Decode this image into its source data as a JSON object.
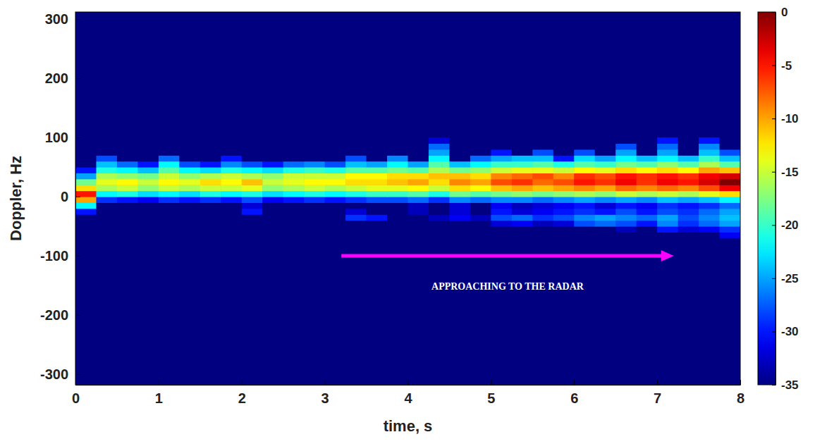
{
  "chart_data": {
    "type": "heatmap",
    "xlabel": "time, s",
    "ylabel": "Doppler, Hz",
    "xlim": [
      0,
      8
    ],
    "xticks": [
      0,
      1,
      2,
      3,
      4,
      5,
      6,
      7,
      8
    ],
    "ylim": [
      -318,
      312
    ],
    "yticks": [
      -300,
      -200,
      -100,
      0,
      100,
      200,
      300
    ],
    "cells": {
      "x_bins": [
        0,
        0.25,
        0.5,
        0.75,
        1,
        1.25,
        1.5,
        1.75,
        2,
        2.25,
        2.5,
        2.75,
        3,
        3.25,
        3.5,
        3.75,
        4,
        4.25,
        4.5,
        4.75,
        5,
        5.25,
        5.5,
        5.75,
        6,
        6.25,
        6.5,
        6.75,
        7,
        7.25,
        7.5,
        7.75,
        8
      ],
      "y_bins": [
        -80,
        -70,
        -60,
        -50,
        -40,
        -30,
        -20,
        -10,
        0,
        10,
        20,
        30,
        40,
        50,
        60,
        70,
        80,
        90,
        100
      ],
      "z": [
        [
          -35,
          -35,
          -35,
          -35,
          -35,
          -35,
          -35,
          -35,
          -35,
          -35,
          -35,
          -35,
          -35,
          -35,
          -35,
          -35,
          -35,
          -35,
          -35,
          -35,
          -35,
          -35,
          -35,
          -35,
          -35,
          -35,
          -35,
          -35,
          -35,
          -35,
          -35,
          -35
        ],
        [
          -35,
          -35,
          -35,
          -35,
          -35,
          -35,
          -35,
          -35,
          -35,
          -35,
          -35,
          -35,
          -35,
          -35,
          -35,
          -35,
          -35,
          -35,
          -35,
          -35,
          -35,
          -35,
          -35,
          -35,
          -35,
          -35,
          -35,
          -35,
          -35,
          -35,
          -35,
          -31
        ],
        [
          -35,
          -35,
          -35,
          -35,
          -35,
          -35,
          -35,
          -35,
          -35,
          -35,
          -35,
          -35,
          -35,
          -35,
          -35,
          -35,
          -35,
          -35,
          -35,
          -35,
          -35,
          -35,
          -35,
          -35,
          -35,
          -35,
          -33,
          -35,
          -30,
          -32,
          -31,
          -29
        ],
        [
          -35,
          -35,
          -35,
          -35,
          -35,
          -35,
          -35,
          -35,
          -35,
          -35,
          -35,
          -35,
          -35,
          -35,
          -35,
          -35,
          -35,
          -35,
          -35,
          -35,
          -32,
          -31,
          -33,
          -32,
          -28,
          -27,
          -28,
          -30,
          -26,
          -29,
          -27,
          -25
        ],
        [
          -35,
          -35,
          -35,
          -35,
          -35,
          -35,
          -35,
          -35,
          -35,
          -35,
          -35,
          -35,
          -35,
          -29,
          -30,
          -35,
          -35,
          -33,
          -31,
          -33,
          -28,
          -27,
          -29,
          -28,
          -26,
          -25,
          -26,
          -27,
          -25,
          -28,
          -26,
          -24
        ],
        [
          -30,
          -35,
          -35,
          -35,
          -35,
          -35,
          -35,
          -35,
          -30,
          -35,
          -35,
          -35,
          -35,
          -32,
          -35,
          -35,
          -33,
          -35,
          -32,
          -35,
          -30,
          -32,
          -31,
          -30,
          -29,
          -30,
          -28,
          -30,
          -28,
          -29,
          -27,
          -25
        ],
        [
          -22,
          -35,
          -35,
          -35,
          -35,
          -35,
          -35,
          -35,
          -32,
          -35,
          -35,
          -35,
          -35,
          -35,
          -35,
          -35,
          -33,
          -35,
          -32,
          -35,
          -31,
          -33,
          -32,
          -31,
          -30,
          -32,
          -30,
          -31,
          -29,
          -30,
          -29,
          -27
        ],
        [
          -10,
          -29,
          -30,
          -31,
          -29,
          -30,
          -29,
          -30,
          -28,
          -31,
          -30,
          -29,
          -30,
          -29,
          -28,
          -28,
          -27,
          -29,
          -26,
          -27,
          -26,
          -26,
          -27,
          -26,
          -25,
          -26,
          -25,
          -26,
          -24,
          -25,
          -24,
          -22
        ],
        [
          -5,
          -22,
          -21,
          -23,
          -22,
          -23,
          -21,
          -22,
          -21,
          -23,
          -22,
          -21,
          -22,
          -21,
          -20,
          -20,
          -19,
          -21,
          -18,
          -19,
          -18,
          -17,
          -18,
          -17,
          -16,
          -17,
          -15,
          -16,
          -15,
          -16,
          -14,
          -12
        ],
        [
          -12,
          -16,
          -15,
          -17,
          -15,
          -16,
          -15,
          -15,
          -14,
          -17,
          -16,
          -15,
          -16,
          -15,
          -14,
          -14,
          -13,
          -15,
          -12,
          -13,
          -11,
          -10,
          -11,
          -10,
          -9,
          -10,
          -8,
          -9,
          -8,
          -9,
          -7,
          -4
        ],
        [
          -18,
          -14,
          -13,
          -15,
          -13,
          -14,
          -12,
          -13,
          -11,
          -15,
          -14,
          -13,
          -13,
          -12,
          -12,
          -11,
          -10,
          -12,
          -9,
          -10,
          -7,
          -6,
          -8,
          -7,
          -5,
          -6,
          -4,
          -6,
          -4,
          -5,
          -3,
          0
        ],
        [
          -25,
          -16,
          -17,
          -18,
          -15,
          -17,
          -16,
          -15,
          -16,
          -17,
          -15,
          -15,
          -15,
          -13,
          -13,
          -12,
          -12,
          -11,
          -11,
          -12,
          -9,
          -8,
          -7,
          -9,
          -6,
          -7,
          -5,
          -6,
          -5,
          -6,
          -4,
          -3
        ],
        [
          -30,
          -21,
          -22,
          -24,
          -19,
          -22,
          -23,
          -21,
          -22,
          -23,
          -21,
          -20,
          -21,
          -19,
          -19,
          -18,
          -19,
          -16,
          -18,
          -17,
          -15,
          -14,
          -14,
          -15,
          -13,
          -14,
          -12,
          -13,
          -12,
          -13,
          -10,
          -11
        ],
        [
          -35,
          -24,
          -27,
          -30,
          -22,
          -28,
          -30,
          -26,
          -28,
          -30,
          -27,
          -26,
          -28,
          -24,
          -25,
          -22,
          -25,
          -19,
          -24,
          -22,
          -20,
          -20,
          -19,
          -21,
          -19,
          -20,
          -18,
          -19,
          -17,
          -19,
          -16,
          -19
        ],
        [
          -35,
          -28,
          -35,
          -35,
          -27,
          -35,
          -35,
          -30,
          -35,
          -35,
          -35,
          -35,
          -35,
          -28,
          -35,
          -26,
          -35,
          -22,
          -35,
          -27,
          -25,
          -24,
          -24,
          -30,
          -23,
          -25,
          -22,
          -24,
          -22,
          -24,
          -20,
          -24
        ],
        [
          -35,
          -35,
          -35,
          -35,
          -35,
          -35,
          -35,
          -35,
          -35,
          -35,
          -35,
          -35,
          -35,
          -35,
          -35,
          -35,
          -35,
          -25,
          -35,
          -35,
          -30,
          -35,
          -28,
          -35,
          -28,
          -35,
          -25,
          -35,
          -25,
          -35,
          -24,
          -28
        ],
        [
          -35,
          -35,
          -35,
          -35,
          -35,
          -35,
          -35,
          -35,
          -35,
          -35,
          -35,
          -35,
          -35,
          -35,
          -35,
          -35,
          -35,
          -27,
          -35,
          -35,
          -35,
          -35,
          -35,
          -35,
          -35,
          -35,
          -28,
          -35,
          -27,
          -35,
          -26,
          -35
        ],
        [
          -35,
          -35,
          -35,
          -35,
          -35,
          -35,
          -35,
          -35,
          -35,
          -35,
          -35,
          -35,
          -35,
          -35,
          -35,
          -35,
          -35,
          -32,
          -35,
          -35,
          -35,
          -35,
          -35,
          -35,
          -35,
          -35,
          -35,
          -35,
          -30,
          -35,
          -30,
          -35
        ]
      ]
    },
    "colorbar": {
      "range": [
        -35,
        0
      ],
      "ticks": [
        0,
        -5,
        -10,
        -15,
        -20,
        -25,
        -30,
        -35
      ]
    },
    "annotations": [
      {
        "text": "APPROACHING TO THE RADAR",
        "x": [
          3.2,
          7.2
        ],
        "y": -100,
        "color": "#ff00ff"
      }
    ]
  }
}
